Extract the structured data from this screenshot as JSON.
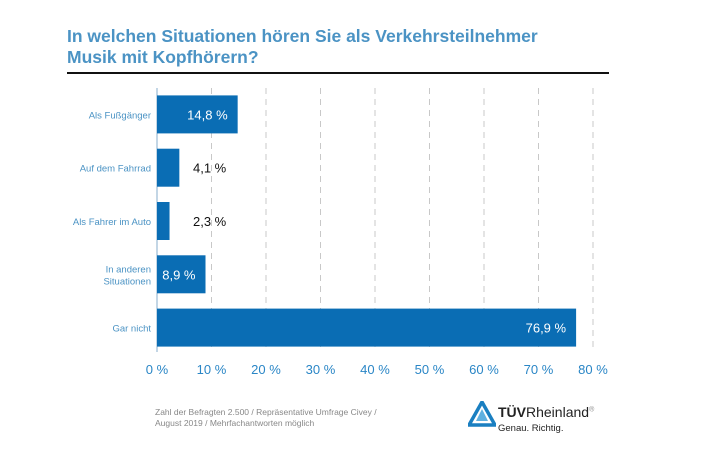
{
  "title_lines": [
    "In welchen Situationen hören Sie als Verkehrsteilnehmer",
    "Musik mit Kopfhörern?"
  ],
  "chart_data": {
    "type": "bar",
    "orientation": "horizontal",
    "categories": [
      "Als Fußgänger",
      "Auf dem Fahrrad",
      "Als Fahrer im Auto",
      "In anderen Situationen",
      "Gar nicht"
    ],
    "category_lines": [
      [
        "Als Fußgänger"
      ],
      [
        "Auf dem Fahrrad"
      ],
      [
        "Als Fahrer im Auto"
      ],
      [
        "In anderen",
        "Situationen"
      ],
      [
        "Gar nicht"
      ]
    ],
    "values": [
      14.8,
      4.1,
      2.3,
      8.9,
      76.9
    ],
    "data_labels": [
      "14,8 %",
      "4,1 %",
      "2,3 %",
      "8,9 %",
      "76,9 %"
    ],
    "xlim": [
      0,
      80
    ],
    "ticks": [
      0,
      10,
      20,
      30,
      40,
      50,
      60,
      70,
      80
    ],
    "tick_labels": [
      "0 %",
      "10 %",
      "20 %",
      "30 %",
      "40 %",
      "50 %",
      "60 %",
      "70 %",
      "80 %"
    ],
    "grid": "vertical dashed",
    "bar_color": "#0a6db4",
    "label_color": "#4b93c4"
  },
  "footnote_lines": [
    "Zahl der Befragten 2.500 / Repräsentative Umfrage Civey /",
    "August 2019 / Mehrfachantworten möglich"
  ],
  "logo": {
    "brand_bold": "TÜV",
    "brand_rest": "Rheinland",
    "registered": "®",
    "slogan": "Genau. Richtig."
  }
}
